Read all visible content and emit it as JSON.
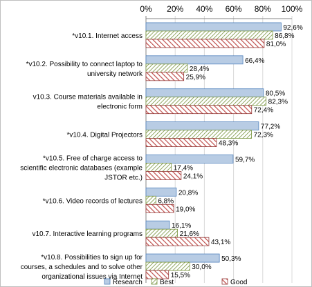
{
  "chart_data": {
    "type": "bar",
    "orientation": "horizontal",
    "axis_position": "top",
    "xlim": [
      0,
      100
    ],
    "xticks": [
      "0%",
      "20%",
      "40%",
      "60%",
      "80%",
      "100%"
    ],
    "grid": true,
    "categories": [
      [
        "*v10.1.  Internet access"
      ],
      [
        "*v10.2.  Possibility to connect laptop to",
        "university network"
      ],
      [
        "v10.3.  Course materials available in",
        "electronic form"
      ],
      [
        "*v10.4.  Digital Projectors"
      ],
      [
        "*v10.5.  Free of charge access to",
        "scientific electronic databases (example",
        "JSTOR etc.)"
      ],
      [
        "*v10.6.  Video records of lectures"
      ],
      [
        "v10.7.  Interactive learning programs"
      ],
      [
        "*v10.8.  Possibilities to sign up for",
        "courses, a schedules and to solve other",
        "organizational issues via Internet"
      ]
    ],
    "series": [
      {
        "name": "Research",
        "color": "#b8cce4",
        "stroke": "#4f81bd",
        "pattern": "solid",
        "values": [
          92.6,
          66.4,
          80.5,
          77.2,
          59.7,
          20.8,
          16.1,
          50.3
        ],
        "labels": [
          "92,6%",
          "66,4%",
          "80,5%",
          "77,2%",
          "59,7%",
          "20,8%",
          "16,1%",
          "50,3%"
        ]
      },
      {
        "name": "Best",
        "color": "#9bbb59",
        "stroke": "#76923c",
        "pattern": "diagonal-hatch",
        "values": [
          86.8,
          28.4,
          82.3,
          72.3,
          17.4,
          6.8,
          21.6,
          30.0
        ],
        "labels": [
          "86,8%",
          "28,4%",
          "82,3%",
          "72,3%",
          "17,4%",
          "6,8%",
          "21,6%",
          "30,0%"
        ]
      },
      {
        "name": "Good",
        "color": "#c0504d",
        "stroke": "#943634",
        "pattern": "diagonal-stripes",
        "values": [
          81.0,
          25.9,
          72.4,
          48.3,
          24.1,
          19.0,
          43.1,
          15.5
        ],
        "labels": [
          "81,0%",
          "25,9%",
          "72,4%",
          "48,3%",
          "24,1%",
          "19,0%",
          "43,1%",
          "15,5%"
        ]
      }
    ],
    "legend": {
      "placement": "bottom"
    }
  }
}
